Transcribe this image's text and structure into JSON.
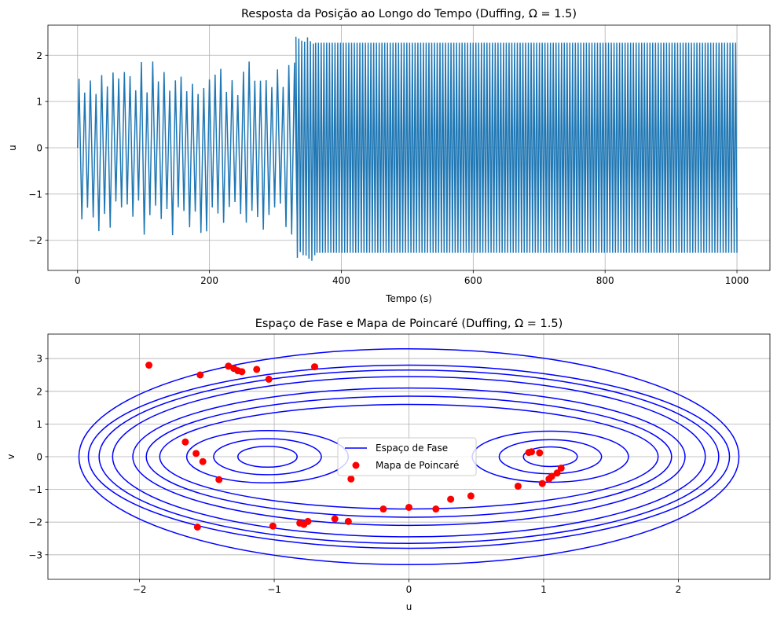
{
  "chart_data": [
    {
      "type": "line",
      "title": "Resposta da Posição ao Longo do Tempo (Duffing, Ω = 1.5)",
      "xlabel": "Tempo (s)",
      "ylabel": "u",
      "xlim": [
        -45,
        1050
      ],
      "ylim": [
        -2.65,
        2.65
      ],
      "xticks": [
        0,
        200,
        400,
        600,
        800,
        1000
      ],
      "xtick_labels": [
        "0",
        "200",
        "400",
        "600",
        "800",
        "1000"
      ],
      "yticks": [
        2,
        1,
        0,
        -1,
        -2
      ],
      "ytick_labels": [
        "2",
        "1",
        "0",
        "−1",
        "−2"
      ],
      "grid": true,
      "series": [
        {
          "color": "#1f77b4",
          "description_of_shape": "oscillation",
          "segments": [
            {
              "t_start": 0,
              "t_end": 330,
              "amplitude_min": 1.1,
              "amplitude_max": 1.9,
              "period": 8.6
            },
            {
              "t_start": 330,
              "t_end": 360,
              "amplitude_min": 2.25,
              "amplitude_max": 2.45,
              "period": 4.4
            },
            {
              "t_start": 360,
              "t_end": 1000,
              "amplitude_min": 2.27,
              "amplitude_max": 2.27,
              "period": 4.19
            }
          ],
          "final_value": -1.3
        }
      ]
    },
    {
      "type": "scatter",
      "title": "Espaço de Fase e Mapa de Poincaré (Duffing, Ω = 1.5)",
      "xlabel": "u",
      "ylabel": "v",
      "xlim": [
        -2.68,
        2.68
      ],
      "ylim": [
        -3.75,
        3.75
      ],
      "xticks": [
        -2,
        -1,
        0,
        1,
        2
      ],
      "xtick_labels": [
        "−2",
        "−1",
        "0",
        "1",
        "2"
      ],
      "yticks": [
        3,
        2,
        1,
        0,
        -1,
        -2,
        -3
      ],
      "ytick_labels": [
        "3",
        "2",
        "1",
        "0",
        "−1",
        "−2",
        "−3"
      ],
      "grid": true,
      "legend": {
        "placement": "center",
        "entries": [
          "Espaço de Fase",
          "Mapa de Poincaré"
        ]
      },
      "series": [
        {
          "name": "Espaço de Fase",
          "kind": "line",
          "color": "#0000ff",
          "orbits": [
            {
              "cx": -1.05,
              "cy": 0.0,
              "rx": 0.22,
              "ry": 0.32
            },
            {
              "cx": -1.05,
              "cy": 0.0,
              "rx": 0.4,
              "ry": 0.55
            },
            {
              "cx": -1.05,
              "cy": 0.0,
              "rx": 0.6,
              "ry": 0.8
            },
            {
              "cx": 1.05,
              "cy": 0.0,
              "rx": 0.2,
              "ry": 0.3
            },
            {
              "cx": 1.05,
              "cy": 0.0,
              "rx": 0.38,
              "ry": 0.52
            },
            {
              "cx": 1.05,
              "cy": 0.0,
              "rx": 0.58,
              "ry": 0.78
            },
            {
              "cx": 0.0,
              "cy": 0.0,
              "rx": 1.85,
              "ry": 1.6
            },
            {
              "cx": 0.0,
              "cy": 0.0,
              "rx": 1.95,
              "ry": 1.85
            },
            {
              "cx": 0.0,
              "cy": 0.0,
              "rx": 2.05,
              "ry": 2.1
            },
            {
              "cx": 0.0,
              "cy": 0.0,
              "rx": 2.2,
              "ry": 2.45
            },
            {
              "cx": 0.0,
              "cy": 0.0,
              "rx": 2.3,
              "ry": 2.65
            },
            {
              "cx": 0.0,
              "cy": 0.0,
              "rx": 2.38,
              "ry": 2.8
            },
            {
              "cx": 0.0,
              "cy": 0.0,
              "rx": 2.45,
              "ry": 3.3
            }
          ]
        },
        {
          "name": "Mapa de Poincaré",
          "kind": "scatter",
          "color": "#ff0000",
          "x": [
            -1.93,
            -1.55,
            -1.34,
            -1.3,
            -1.27,
            -1.24,
            -1.13,
            -1.04,
            -0.7,
            -1.57,
            -1.01,
            -0.81,
            -0.78,
            -0.75,
            -0.55,
            -0.43,
            0.0,
            0.2,
            0.31,
            0.46,
            0.81,
            0.89,
            0.91,
            0.97,
            0.99,
            1.04,
            1.06,
            1.1,
            1.13,
            -1.66,
            -1.58,
            -1.53,
            -1.41,
            -0.45,
            -0.19
          ],
          "y": [
            2.8,
            2.5,
            2.77,
            2.7,
            2.63,
            2.6,
            2.67,
            2.37,
            2.75,
            -2.15,
            -2.12,
            -2.03,
            -2.07,
            -1.98,
            -1.9,
            -0.68,
            -1.55,
            -1.6,
            -1.3,
            -1.2,
            -0.9,
            0.13,
            0.15,
            0.12,
            -0.82,
            -0.68,
            -0.6,
            -0.5,
            -0.35,
            0.45,
            0.1,
            -0.15,
            -0.7,
            -1.98,
            -1.6
          ]
        }
      ]
    }
  ]
}
